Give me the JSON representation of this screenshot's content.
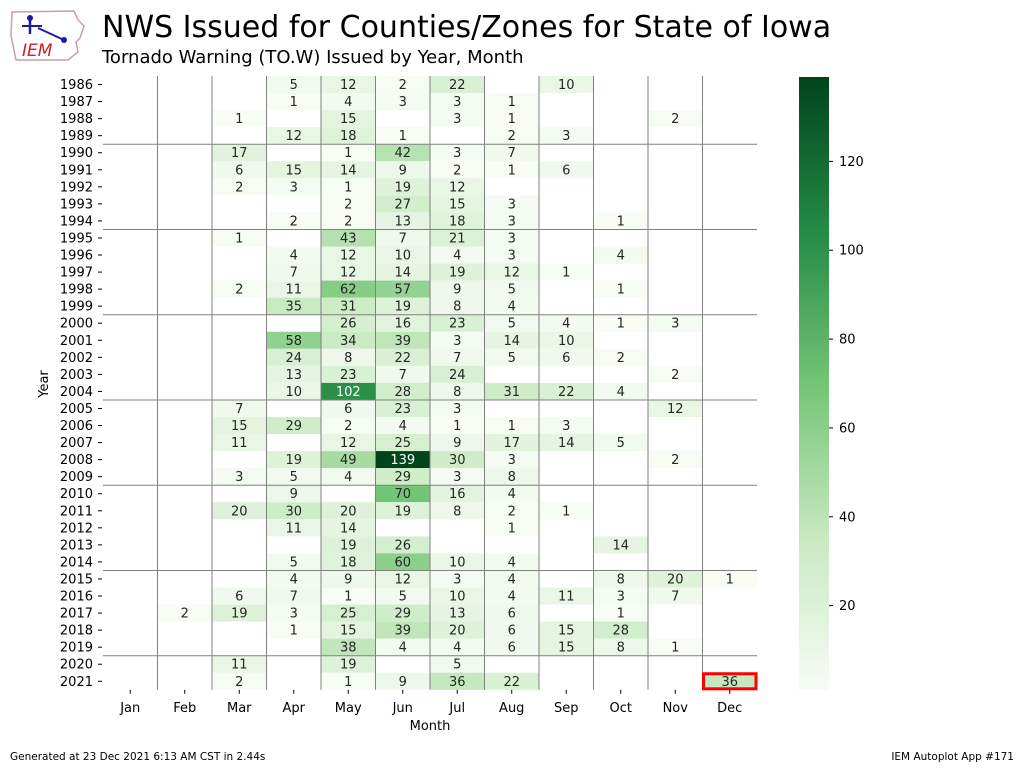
{
  "header": {
    "title": "NWS Issued for Counties/Zones for State of Iowa",
    "subtitle": "Tornado Warning (TO.W) Issued by Year, Month",
    "logo_text": "IEM"
  },
  "footer": {
    "left": "Generated at 23 Dec 2021 6:13 AM CST in 2.44s",
    "right": "IEM Autoplot App #171"
  },
  "colors": {
    "scale_low": "#f7fcf5",
    "scale_high": "#00441b",
    "highlight": "#ff0000",
    "separator": "#808080"
  },
  "chart_data": {
    "type": "heatmap",
    "xlabel": "Month",
    "ylabel": "Year",
    "months": [
      "Jan",
      "Feb",
      "Mar",
      "Apr",
      "May",
      "Jun",
      "Jul",
      "Aug",
      "Sep",
      "Oct",
      "Nov",
      "Dec"
    ],
    "years": [
      1986,
      1987,
      1988,
      1989,
      1990,
      1991,
      1992,
      1993,
      1994,
      1995,
      1996,
      1997,
      1998,
      1999,
      2000,
      2001,
      2002,
      2003,
      2004,
      2005,
      2006,
      2007,
      2008,
      2009,
      2010,
      2011,
      2012,
      2013,
      2014,
      2015,
      2016,
      2017,
      2018,
      2019,
      2020,
      2021
    ],
    "values": [
      [
        null,
        null,
        null,
        5,
        12,
        2,
        22,
        null,
        10,
        null,
        null,
        null
      ],
      [
        null,
        null,
        null,
        1,
        4,
        3,
        3,
        1,
        null,
        null,
        null,
        null
      ],
      [
        null,
        null,
        1,
        null,
        15,
        null,
        3,
        1,
        null,
        null,
        2,
        null
      ],
      [
        null,
        null,
        null,
        12,
        18,
        1,
        null,
        2,
        3,
        null,
        null,
        null
      ],
      [
        null,
        null,
        17,
        null,
        1,
        42,
        3,
        7,
        null,
        null,
        null,
        null
      ],
      [
        null,
        null,
        6,
        15,
        14,
        9,
        2,
        1,
        6,
        null,
        null,
        null
      ],
      [
        null,
        null,
        2,
        3,
        1,
        19,
        12,
        null,
        null,
        null,
        null,
        null
      ],
      [
        null,
        null,
        null,
        null,
        2,
        27,
        15,
        3,
        null,
        null,
        null,
        null
      ],
      [
        null,
        null,
        null,
        2,
        2,
        13,
        18,
        3,
        null,
        1,
        null,
        null
      ],
      [
        null,
        null,
        1,
        null,
        43,
        7,
        21,
        3,
        null,
        null,
        null,
        null
      ],
      [
        null,
        null,
        null,
        4,
        12,
        10,
        4,
        3,
        null,
        4,
        null,
        null
      ],
      [
        null,
        null,
        null,
        7,
        12,
        14,
        19,
        12,
        1,
        null,
        null,
        null
      ],
      [
        null,
        null,
        2,
        11,
        62,
        57,
        9,
        5,
        null,
        1,
        null,
        null
      ],
      [
        null,
        null,
        null,
        35,
        31,
        19,
        8,
        4,
        null,
        null,
        null,
        null
      ],
      [
        null,
        null,
        null,
        null,
        26,
        16,
        23,
        5,
        4,
        1,
        3,
        null
      ],
      [
        null,
        null,
        null,
        58,
        34,
        39,
        3,
        14,
        10,
        null,
        null,
        null
      ],
      [
        null,
        null,
        null,
        24,
        8,
        22,
        7,
        5,
        6,
        2,
        null,
        null
      ],
      [
        null,
        null,
        null,
        13,
        23,
        7,
        24,
        null,
        null,
        null,
        2,
        null
      ],
      [
        null,
        null,
        null,
        10,
        102,
        28,
        8,
        31,
        22,
        4,
        null,
        null
      ],
      [
        null,
        null,
        7,
        null,
        6,
        23,
        3,
        null,
        null,
        null,
        12,
        null
      ],
      [
        null,
        null,
        15,
        29,
        2,
        4,
        1,
        1,
        3,
        null,
        null,
        null
      ],
      [
        null,
        null,
        11,
        null,
        12,
        25,
        9,
        17,
        14,
        5,
        null,
        null
      ],
      [
        null,
        null,
        null,
        19,
        49,
        139,
        30,
        3,
        null,
        null,
        2,
        null
      ],
      [
        null,
        null,
        3,
        5,
        4,
        29,
        3,
        8,
        null,
        null,
        null,
        null
      ],
      [
        null,
        null,
        null,
        9,
        null,
        70,
        16,
        4,
        null,
        null,
        null,
        null
      ],
      [
        null,
        null,
        20,
        30,
        20,
        19,
        8,
        2,
        1,
        null,
        null,
        null
      ],
      [
        null,
        null,
        null,
        11,
        14,
        null,
        null,
        1,
        null,
        null,
        null,
        null
      ],
      [
        null,
        null,
        null,
        null,
        19,
        26,
        null,
        null,
        null,
        14,
        null,
        null
      ],
      [
        null,
        null,
        null,
        5,
        18,
        60,
        10,
        4,
        null,
        null,
        null,
        null
      ],
      [
        null,
        null,
        null,
        4,
        9,
        12,
        3,
        4,
        null,
        8,
        20,
        1
      ],
      [
        null,
        null,
        6,
        7,
        1,
        5,
        10,
        4,
        11,
        3,
        7,
        null
      ],
      [
        null,
        2,
        19,
        3,
        25,
        29,
        13,
        6,
        null,
        1,
        null,
        null
      ],
      [
        null,
        null,
        null,
        1,
        15,
        39,
        20,
        6,
        15,
        28,
        null,
        null
      ],
      [
        null,
        null,
        null,
        null,
        38,
        4,
        4,
        6,
        15,
        8,
        1,
        null
      ],
      [
        null,
        null,
        11,
        null,
        19,
        null,
        5,
        null,
        null,
        null,
        null,
        null
      ],
      [
        null,
        null,
        2,
        null,
        1,
        9,
        36,
        22,
        null,
        null,
        null,
        36
      ]
    ],
    "highlight_cell": {
      "year": 2021,
      "month": "Dec"
    },
    "colorbar": {
      "min": 1,
      "max": 139,
      "ticks": [
        20,
        40,
        60,
        80,
        100,
        120
      ]
    },
    "grid": "vertical month lines and horizontal lines every 5 years"
  }
}
